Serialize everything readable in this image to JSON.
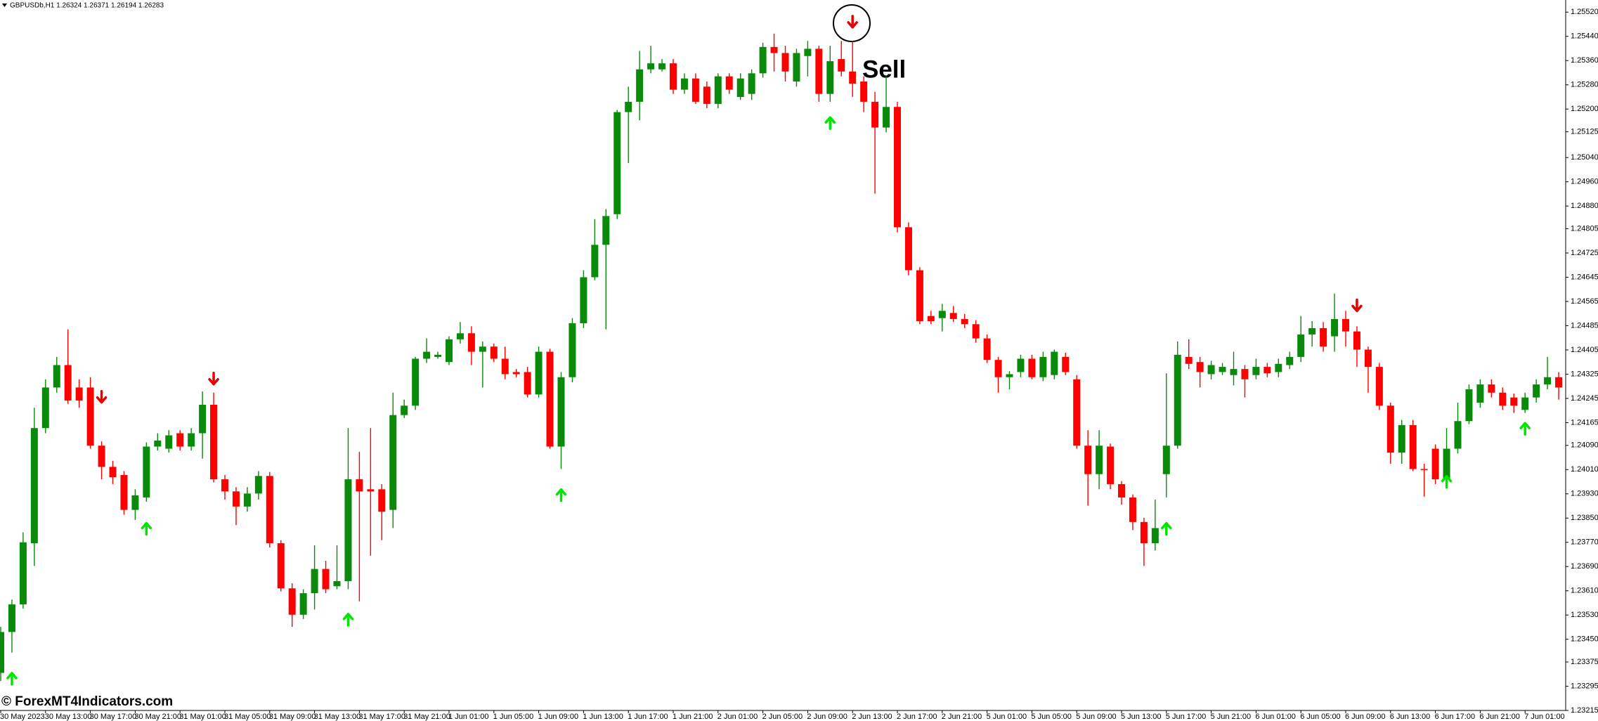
{
  "chart_data": {
    "type": "candlestick",
    "title": "GBPUSDb,H1  1.26324 1.26371 1.26194 1.26283",
    "annotation": "Sell",
    "watermark": "© ForexMT4Indicators.com",
    "up_color": "#0a8a0a",
    "down_color": "#ff0000",
    "ylim": [
      1.23215,
      1.2556
    ],
    "yticks": [
      {
        "value": 1.2552,
        "label": "1.25520"
      },
      {
        "value": 1.2544,
        "label": "1.25440"
      },
      {
        "value": 1.2536,
        "label": "1.25360"
      },
      {
        "value": 1.2528,
        "label": "1.25280"
      },
      {
        "value": 1.252,
        "label": "1.25200"
      },
      1.25125,
      {
        "value": 1.2504,
        "label": "1.25040"
      },
      {
        "value": 1.2496,
        "label": "1.24960"
      },
      {
        "value": 1.2488,
        "label": "1.24880"
      },
      1.24805,
      1.24725,
      1.24645,
      1.24565,
      1.24485,
      1.24405,
      1.24325,
      1.24245,
      1.24165,
      {
        "value": 1.2409,
        "label": "1.24090"
      },
      {
        "value": 1.2401,
        "label": "1.24010"
      },
      {
        "value": 1.2393,
        "label": "1.23930"
      },
      {
        "value": 1.2385,
        "label": "1.23850"
      },
      {
        "value": 1.2377,
        "label": "1.23770"
      },
      {
        "value": 1.2369,
        "label": "1.23690"
      },
      {
        "value": 1.2361,
        "label": "1.23610"
      },
      {
        "value": 1.2353,
        "label": "1.23530"
      },
      {
        "value": 1.2345,
        "label": "1.23450"
      },
      1.23375,
      1.23295,
      1.23215
    ],
    "categories": [
      "30 May 2023",
      null,
      null,
      null,
      "30 May 13:00",
      null,
      null,
      null,
      "30 May 17:00",
      null,
      null,
      null,
      "30 May 21:00",
      null,
      null,
      null,
      "31 May 01:00",
      null,
      null,
      null,
      "31 May 05:00",
      null,
      null,
      null,
      "31 May 09:00",
      null,
      null,
      null,
      "31 May 13:00",
      null,
      null,
      null,
      "31 May 17:00",
      null,
      null,
      null,
      "31 May 21:00",
      null,
      null,
      null,
      "1 Jun 01:00",
      null,
      null,
      null,
      "1 Jun 05:00",
      null,
      null,
      null,
      "1 Jun 09:00",
      null,
      null,
      null,
      "1 Jun 13:00",
      null,
      null,
      null,
      "1 Jun 17:00",
      null,
      null,
      null,
      "1 Jun 21:00",
      null,
      null,
      null,
      "2 Jun 01:00",
      null,
      null,
      null,
      "2 Jun 05:00",
      null,
      null,
      null,
      "2 Jun 09:00",
      null,
      null,
      null,
      "2 Jun 13:00",
      null,
      null,
      null,
      "2 Jun 17:00",
      null,
      null,
      null,
      "2 Jun 21:00",
      null,
      null,
      null,
      "5 Jun 01:00",
      null,
      null,
      null,
      "5 Jun 05:00",
      null,
      null,
      null,
      "5 Jun 09:00",
      null,
      null,
      null,
      "5 Jun 13:00",
      null,
      null,
      null,
      "5 Jun 17:00",
      null,
      null,
      null,
      "5 Jun 21:00",
      null,
      null,
      null,
      "6 Jun 01:00",
      null,
      null,
      null,
      "6 Jun 05:00",
      null,
      null,
      null,
      "6 Jun 09:00",
      null,
      null,
      null,
      "6 Jun 13:00",
      null,
      null,
      null,
      "6 Jun 17:00",
      null,
      null,
      null,
      "6 Jun 21:00",
      null,
      null,
      null,
      "7 Jun 01:00",
      null,
      null,
      null
    ],
    "open": [
      1.23339,
      1.23474,
      1.23565,
      1.23767,
      1.24147,
      1.24281,
      1.24355,
      1.24281,
      1.24281,
      1.24089,
      1.24019,
      1.23992,
      1.23877,
      1.23918,
      1.24086,
      1.24079,
      1.2413,
      1.24086,
      1.2413,
      1.24224,
      1.23978,
      1.23938,
      1.23888,
      1.23931,
      1.23989,
      1.23767,
      1.23618,
      1.23531,
      1.23602,
      1.23682,
      1.23625,
      1.23642,
      1.23978,
      1.23945,
      1.23945,
      1.23877,
      1.2419,
      1.24221,
      1.24376,
      1.24382,
      1.24365,
      1.2444,
      1.2446,
      1.24399,
      1.24416,
      1.24376,
      1.24332,
      1.24332,
      1.24258,
      1.24399,
      1.24086,
      1.24315,
      1.24493,
      1.24645,
      1.24752,
      1.24853,
      1.2519,
      1.25224,
      1.25331,
      1.25331,
      1.25351,
      1.25264,
      1.25301,
      1.25274,
      1.25217,
      1.25308,
      1.2524,
      1.2525,
      1.25318,
      1.25405,
      1.25385,
      1.25291,
      1.25375,
      1.25399,
      1.2525,
      1.25365,
      1.25324,
      1.25291,
      1.25224,
      1.25139,
      1.25207,
      1.2481,
      1.24668,
      1.24517,
      1.2451,
      1.24527,
      1.24507,
      1.2449,
      1.24443,
      1.24372,
      1.24315,
      1.24332,
      1.24376,
      1.24315,
      1.24322,
      1.24382,
      1.24308,
      1.24089,
      1.23995,
      1.24086,
      1.23962,
      1.23918,
      1.23837,
      1.23767,
      1.23995,
      1.24089,
      1.24382,
      1.24365,
      1.24325,
      1.24332,
      1.24322,
      1.24342,
      1.24322,
      1.24349,
      1.24332,
      1.24355,
      1.24382,
      1.24456,
      1.24477,
      1.2445,
      1.24507,
      1.24466,
      1.24406,
      1.24349,
      1.24221,
      1.24066,
      1.24157,
      1.24012,
      1.24079,
      1.23978,
      1.24079,
      1.2417,
      1.24231,
      1.24291,
      1.24264,
      1.24248,
      1.24207,
      1.24248,
      1.24291,
      1.24315
    ],
    "high": [
      1.23491,
      1.23581,
      1.23803,
      1.24214,
      1.24308,
      1.24382,
      1.24473,
      1.24308,
      1.24315,
      1.24103,
      1.24039,
      1.24005,
      1.23945,
      1.241,
      1.2413,
      1.2414,
      1.2414,
      1.24147,
      1.24268,
      1.24264,
      1.23992,
      1.23952,
      1.23952,
      1.24005,
      1.24002,
      1.23777,
      1.23635,
      1.23615,
      1.2376,
      1.23709,
      1.2376,
      1.24147,
      1.24069,
      1.24147,
      1.23962,
      1.24264,
      1.24241,
      1.24382,
      1.24443,
      1.24399,
      1.2445,
      1.24497,
      1.24483,
      1.24433,
      1.24426,
      1.24416,
      1.24342,
      1.24349,
      1.24416,
      1.24409,
      1.24332,
      1.2451,
      1.24668,
      1.24837,
      1.2487,
      1.25197,
      1.25274,
      1.25392,
      1.25409,
      1.25365,
      1.25365,
      1.25318,
      1.25318,
      1.25291,
      1.25318,
      1.25318,
      1.25318,
      1.25331,
      1.25419,
      1.25449,
      1.25409,
      1.25399,
      1.25425,
      1.25409,
      1.25409,
      1.25425,
      1.25425,
      1.25308,
      1.25257,
      1.25308,
      1.25224,
      1.24826,
      1.24678,
      1.24534,
      1.24557,
      1.2455,
      1.24524,
      1.24503,
      1.24456,
      1.24382,
      1.24335,
      1.24389,
      1.24389,
      1.24399,
      1.24406,
      1.24396,
      1.24322,
      1.2414,
      1.2414,
      1.24096,
      1.23972,
      1.23928,
      1.23851,
      1.23911,
      1.24328,
      1.24433,
      1.2444,
      1.24382,
      1.24369,
      1.24362,
      1.24399,
      1.24355,
      1.24376,
      1.24362,
      1.24376,
      1.24399,
      1.24517,
      1.245,
      1.24497,
      1.24591,
      1.24534,
      1.24483,
      1.24416,
      1.24362,
      1.24231,
      1.24174,
      1.24174,
      1.24029,
      1.24093,
      1.24147,
      1.24231,
      1.24291,
      1.24308,
      1.24308,
      1.24281,
      1.24261,
      1.24264,
      1.24308,
      1.24382,
      1.24332
    ],
    "low": [
      1.23312,
      1.23406,
      1.23551,
      1.23692,
      1.2413,
      1.24264,
      1.24227,
      1.24214,
      1.24079,
      1.23978,
      1.23962,
      1.23861,
      1.23844,
      1.23904,
      1.24073,
      1.24066,
      1.24073,
      1.24073,
      1.24046,
      1.23968,
      1.23911,
      1.23827,
      1.23871,
      1.23911,
      1.23753,
      1.23608,
      1.23491,
      1.23517,
      1.23548,
      1.23602,
      1.23615,
      1.23615,
      1.23575,
      1.23726,
      1.23777,
      1.23817,
      1.2418,
      1.24207,
      1.24362,
      1.24376,
      1.24355,
      1.24426,
      1.24355,
      1.24281,
      1.24365,
      1.24308,
      1.24315,
      1.24248,
      1.24248,
      1.24079,
      1.24012,
      1.24298,
      1.24477,
      1.24635,
      1.24473,
      1.24837,
      1.25022,
      1.25163,
      1.25318,
      1.25324,
      1.2525,
      1.2525,
      1.25217,
      1.25203,
      1.25203,
      1.2525,
      1.2523,
      1.2523,
      1.25304,
      1.25324,
      1.25291,
      1.25274,
      1.25308,
      1.25224,
      1.25224,
      1.25308,
      1.2524,
      1.2519,
      1.24921,
      1.25123,
      1.24793,
      1.24651,
      1.2449,
      1.2449,
      1.24466,
      1.24497,
      1.24477,
      1.24429,
      1.24362,
      1.24264,
      1.24275,
      1.24315,
      1.24308,
      1.24302,
      1.24308,
      1.24322,
      1.24079,
      1.23891,
      1.23945,
      1.23945,
      1.23894,
      1.2381,
      1.23692,
      1.23743,
      1.23918,
      1.24079,
      1.24342,
      1.24281,
      1.24308,
      1.24322,
      1.24288,
      1.24248,
      1.24308,
      1.24315,
      1.24315,
      1.24342,
      1.24365,
      1.24416,
      1.24399,
      1.24399,
      1.24416,
      1.24349,
      1.24264,
      1.24207,
      1.24029,
      1.24029,
      1.24005,
      1.23921,
      1.23962,
      1.23962,
      1.24063,
      1.2416,
      1.24214,
      1.24248,
      1.24207,
      1.24197,
      1.24197,
      1.24231,
      1.24275,
      1.24241
    ],
    "close": [
      1.23474,
      1.23565,
      1.2377,
      1.24147,
      1.24281,
      1.24355,
      1.24238,
      1.24238,
      1.24089,
      1.24019,
      1.23985,
      1.23877,
      1.23925,
      1.24086,
      1.24106,
      1.24123,
      1.24086,
      1.2413,
      1.24224,
      1.23978,
      1.23938,
      1.23888,
      1.23931,
      1.23989,
      1.23767,
      1.23618,
      1.23531,
      1.23602,
      1.23682,
      1.23615,
      1.23642,
      1.23978,
      1.23938,
      1.23938,
      1.23871,
      1.2419,
      1.24221,
      1.24376,
      1.24399,
      1.24389,
      1.2444,
      1.2446,
      1.24399,
      1.24416,
      1.24376,
      1.24325,
      1.24325,
      1.24258,
      1.24399,
      1.24086,
      1.24315,
      1.24493,
      1.24645,
      1.24752,
      1.24847,
      1.2519,
      1.25224,
      1.25331,
      1.25351,
      1.25351,
      1.25264,
      1.25301,
      1.25224,
      1.25217,
      1.25308,
      1.25264,
      1.25301,
      1.25318,
      1.25405,
      1.25385,
      1.25324,
      1.25385,
      1.25399,
      1.2525,
      1.25358,
      1.25324,
      1.25284,
      1.25224,
      1.25139,
      1.25207,
      1.2481,
      1.24668,
      1.245,
      1.245,
      1.24534,
      1.24507,
      1.2449,
      1.24443,
      1.24372,
      1.24315,
      1.24325,
      1.24376,
      1.24315,
      1.24382,
      1.24399,
      1.24332,
      1.24089,
      1.23995,
      1.24089,
      1.23962,
      1.23918,
      1.23837,
      1.23767,
      1.23817,
      1.24089,
      1.24389,
      1.24359,
      1.24332,
      1.24355,
      1.24349,
      1.24342,
      1.24308,
      1.24349,
      1.24328,
      1.24359,
      1.24382,
      1.24456,
      1.24477,
      1.24416,
      1.24507,
      1.24466,
      1.24406,
      1.24349,
      1.24221,
      1.24066,
      1.24157,
      1.24012,
      1.24009,
      1.23978,
      1.24079,
      1.2417,
      1.24275,
      1.24291,
      1.24264,
      1.24221,
      1.24221,
      1.24248,
      1.24291,
      1.24315,
      1.24281
    ],
    "up_arrows": {
      "color": "#00e600",
      "points": [
        {
          "x": 1,
          "y": 1.23322
        },
        {
          "x": 13,
          "y": 1.23817
        },
        {
          "x": 31,
          "y": 1.23517
        },
        {
          "x": 50,
          "y": 1.23928
        },
        {
          "x": 74,
          "y": 1.25156
        },
        {
          "x": 104,
          "y": 1.23817
        },
        {
          "x": 129,
          "y": 1.23972
        },
        {
          "x": 136,
          "y": 1.24147
        }
      ]
    },
    "down_arrows": {
      "color": "#e60000",
      "points": [
        {
          "x": 9,
          "y": 1.24248
        },
        {
          "x": 19,
          "y": 1.24308
        },
        {
          "x": 76,
          "y": 1.25486
        },
        {
          "x": 121,
          "y": 1.2455
        }
      ]
    }
  }
}
